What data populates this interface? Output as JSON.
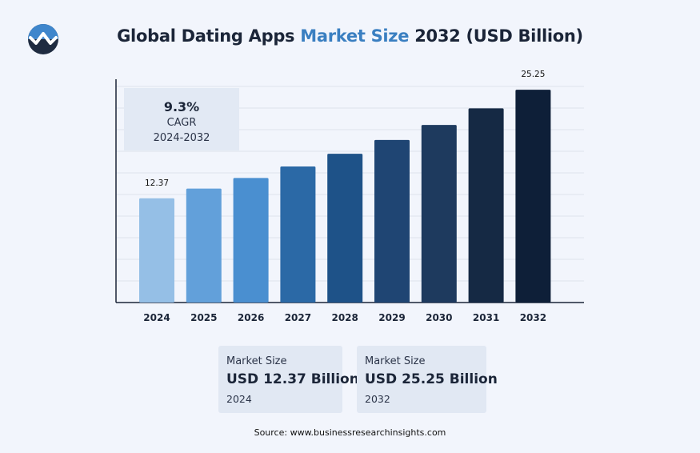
{
  "header": {
    "title_part1": "Global Dating Apps",
    "title_accent": "Market Size",
    "title_part2": "2032 (USD Billion)"
  },
  "chart_data": {
    "type": "bar",
    "title": "Global Dating Apps Market Size 2032 (USD Billion)",
    "categories": [
      "2024",
      "2025",
      "2026",
      "2027",
      "2028",
      "2029",
      "2030",
      "2031",
      "2032"
    ],
    "values": [
      12.37,
      13.52,
      14.78,
      16.15,
      17.65,
      19.29,
      21.08,
      23.04,
      25.25
    ],
    "value_labels": {
      "0": "12.37",
      "8": "25.25"
    },
    "bar_colors": [
      "#95bfe6",
      "#62a0da",
      "#4a8fd0",
      "#2b69a6",
      "#1e5288",
      "#1f4573",
      "#1e3a5e",
      "#152944",
      "#0e1f38"
    ],
    "xlabel": "",
    "ylabel": "",
    "ylim": [
      0,
      26.5
    ],
    "grid": true,
    "colors": {
      "accent": "#3a7fc1",
      "text": "#1b2538"
    }
  },
  "cagr": {
    "value": "9.3%",
    "label": "CAGR",
    "period": "2024-2032"
  },
  "cards": [
    {
      "label": "Market Size",
      "value": "USD 12.37 Billion",
      "year": "2024"
    },
    {
      "label": "Market Size",
      "value": "USD 25.25 Billion",
      "year": "2032"
    }
  ],
  "source": "Source: www.businessresearchinsights.com"
}
